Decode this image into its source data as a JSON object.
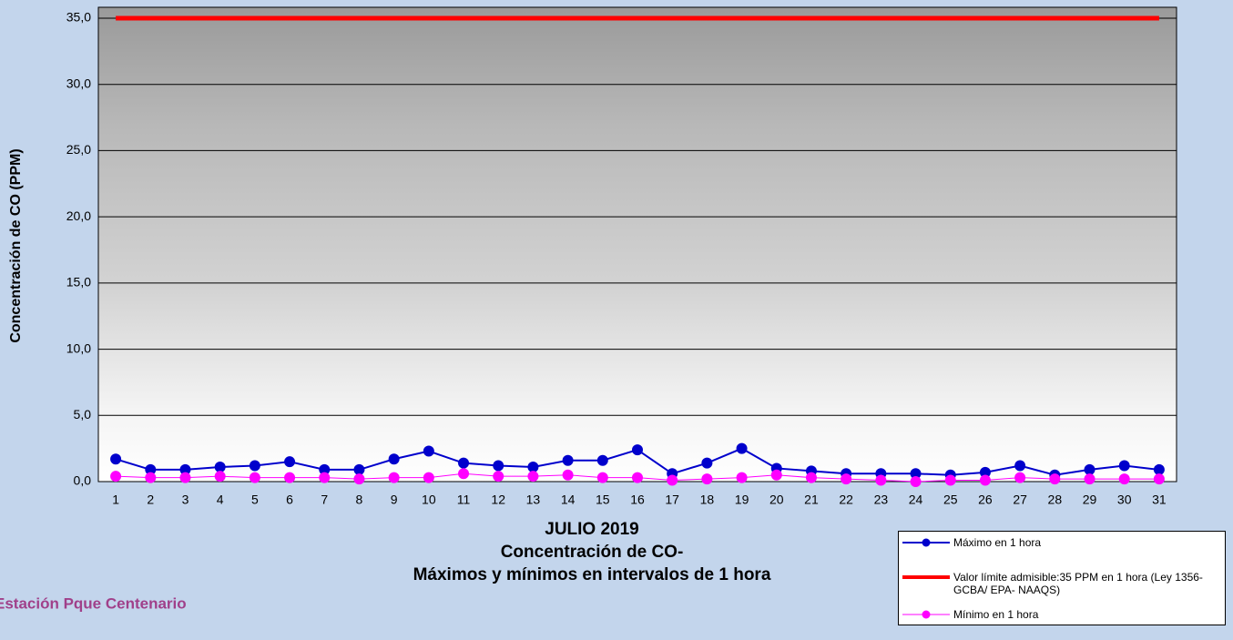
{
  "chart_data": {
    "type": "line",
    "title_lines": [
      "JULIO 2019",
      "Concentración de CO-",
      "Máximos y mínimos en intervalos de 1 hora"
    ],
    "annotation": "Estación Pque Centenario",
    "y_label": "Concentración de CO (PPM)",
    "categories": [
      "1",
      "2",
      "3",
      "4",
      "5",
      "6",
      "7",
      "8",
      "9",
      "10",
      "11",
      "12",
      "13",
      "14",
      "15",
      "16",
      "17",
      "18",
      "19",
      "20",
      "21",
      "22",
      "23",
      "24",
      "25",
      "26",
      "27",
      "28",
      "29",
      "30",
      "31"
    ],
    "series": [
      {
        "name": "Máximo en 1 hora",
        "color": "#0000cc",
        "markers": true,
        "values": [
          1.7,
          0.9,
          0.9,
          1.1,
          1.2,
          1.5,
          0.9,
          0.9,
          1.7,
          2.3,
          1.4,
          1.2,
          1.1,
          1.6,
          1.6,
          2.4,
          0.6,
          1.4,
          2.5,
          1.0,
          0.8,
          0.6,
          0.6,
          0.6,
          0.5,
          0.7,
          1.2,
          0.5,
          0.9,
          1.2,
          0.9
        ]
      },
      {
        "name": "Valor límite admisible:35 PPM en 1 hora (Ley 1356-GCBA/ EPA- NAAQS)",
        "color": "#ff0000",
        "markers": false,
        "values": [
          35,
          35,
          35,
          35,
          35,
          35,
          35,
          35,
          35,
          35,
          35,
          35,
          35,
          35,
          35,
          35,
          35,
          35,
          35,
          35,
          35,
          35,
          35,
          35,
          35,
          35,
          35,
          35,
          35,
          35,
          35
        ]
      },
      {
        "name": "Mínimo en 1 hora",
        "color": "#ff00ff",
        "markers": true,
        "values": [
          0.4,
          0.3,
          0.3,
          0.4,
          0.3,
          0.3,
          0.3,
          0.2,
          0.3,
          0.3,
          0.6,
          0.4,
          0.4,
          0.5,
          0.3,
          0.3,
          0.1,
          0.2,
          0.3,
          0.5,
          0.3,
          0.2,
          0.1,
          0.0,
          0.1,
          0.1,
          0.3,
          0.2,
          0.2,
          0.2,
          0.2
        ]
      }
    ],
    "ylim": [
      0,
      35
    ],
    "yticks": [
      {
        "value": 0,
        "label": "0,0"
      },
      {
        "value": 5,
        "label": "5,0"
      },
      {
        "value": 10,
        "label": "10,0"
      },
      {
        "value": 15,
        "label": "15,0"
      },
      {
        "value": 20,
        "label": "20,0"
      },
      {
        "value": 25,
        "label": "25,0"
      },
      {
        "value": 30,
        "label": "30,0"
      },
      {
        "value": 35,
        "label": "35,0"
      }
    ],
    "grid": true
  }
}
